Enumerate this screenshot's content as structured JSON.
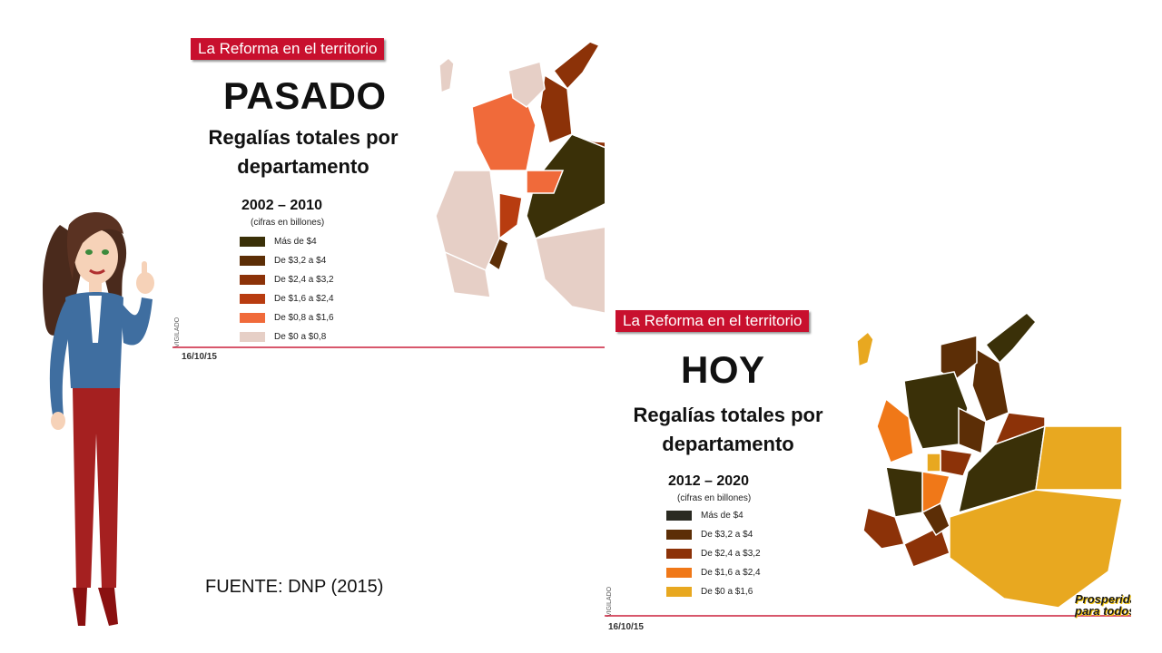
{
  "past": {
    "header": "La Reforma en el territorio",
    "title": "PASADO",
    "subtitle_line1": "Regalías totales por",
    "subtitle_line2": "departamento",
    "period": "2002 – 2010",
    "units": "(cifras en billones)",
    "legend": [
      {
        "label": "Más de $4",
        "color": "#3a3008"
      },
      {
        "label": "De $3,2 a $4",
        "color": "#5c2e06"
      },
      {
        "label": "De $2,4 a $3,2",
        "color": "#8c3208"
      },
      {
        "label": "De $1,6 a $2,4",
        "color": "#b83c10"
      },
      {
        "label": "De $0,8 a $1,6",
        "color": "#f06a3a"
      },
      {
        "label": "De $0 a $0,8",
        "color": "#e6cfc6"
      }
    ],
    "date": "16/10/15",
    "vertical_mark": "VIGILADO"
  },
  "now": {
    "header": "La Reforma en el territorio",
    "title": "HOY",
    "subtitle_line1": "Regalías totales por",
    "subtitle_line2": "departamento",
    "period": "2012 – 2020",
    "units": "(cifras en billones)",
    "legend": [
      {
        "label": "Más de $4",
        "color": "#2a2a22"
      },
      {
        "label": "De $3,2 a $4",
        "color": "#5c2e06"
      },
      {
        "label": "De $2,4 a $3,2",
        "color": "#8c3208"
      },
      {
        "label": "De $1,6 a $2,4",
        "color": "#f07818"
      },
      {
        "label": "De $0 a $1,6",
        "color": "#e8a820"
      }
    ],
    "date": "16/10/15",
    "vertical_mark": "VIGILADO"
  },
  "source": "FUENTE: DNP (2015)",
  "brand_line1": "Prosperidad",
  "brand_line2": "para todos"
}
